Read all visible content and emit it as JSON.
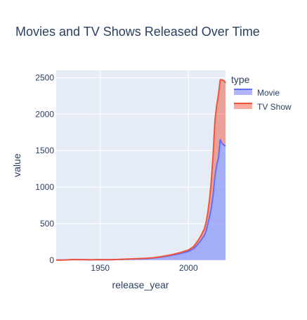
{
  "chart_data": {
    "type": "area",
    "title": "Movies and TV Shows Released Over Time",
    "xlabel": "release_year",
    "ylabel": "value",
    "xlim": [
      1925,
      2021
    ],
    "ylim": [
      0,
      2600
    ],
    "x_ticks": [
      1950,
      2000
    ],
    "y_ticks": [
      0,
      500,
      1000,
      1500,
      2000,
      2500
    ],
    "stacked": true,
    "grid": true,
    "legend_title": "type",
    "legend_position": "right-top",
    "x": [
      1925,
      1930,
      1935,
      1940,
      1945,
      1950,
      1955,
      1960,
      1965,
      1970,
      1975,
      1980,
      1985,
      1990,
      1995,
      2000,
      2003,
      2005,
      2007,
      2009,
      2010,
      2011,
      2012,
      2013,
      2014,
      2015,
      2016,
      2017,
      2018,
      2019,
      2020,
      2021
    ],
    "series": [
      {
        "name": "Movie",
        "color": "#636efa",
        "fill": "rgba(99,110,250,0.5)",
        "values": [
          2,
          4,
          10,
          8,
          6,
          8,
          6,
          10,
          14,
          18,
          22,
          30,
          45,
          65,
          90,
          120,
          160,
          210,
          270,
          340,
          400,
          500,
          600,
          720,
          900,
          1150,
          1300,
          1400,
          1650,
          1600,
          1580,
          1560
        ]
      },
      {
        "name": "TV Show",
        "color": "#ef553b",
        "fill": "rgba(239,85,59,0.5)",
        "values": [
          0,
          0,
          0,
          0,
          0,
          1,
          1,
          1,
          2,
          2,
          3,
          4,
          6,
          8,
          12,
          20,
          30,
          45,
          60,
          90,
          120,
          160,
          250,
          380,
          560,
          760,
          820,
          870,
          820,
          870,
          880,
          870
        ]
      }
    ]
  }
}
